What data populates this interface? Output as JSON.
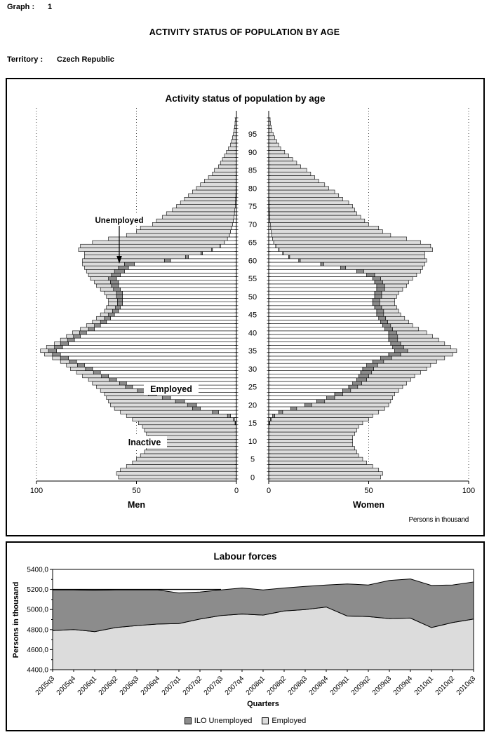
{
  "header": {
    "graph_label": "Graph :",
    "graph_number": "1",
    "page_title": "ACTIVITY STATUS OF POPULATION BY AGE",
    "territory_label": "Territory :",
    "territory_value": "Czech Republic"
  },
  "colors": {
    "employed_fill": "#ffffff",
    "unemployed_fill": "#8c8c8c",
    "inactive_fill": "#dcdcdc",
    "line": "#000000"
  },
  "chart_data": [
    {
      "id": "pyramid",
      "type": "bar",
      "subtype": "population-pyramid",
      "title": "Activity status of population by age",
      "left_label": "Men",
      "right_label": "Women",
      "units_label": "Persons in thousand",
      "xlim": [
        0,
        100
      ],
      "xticks_men": [
        "100",
        "50",
        "0"
      ],
      "xticks_women": [
        "0",
        "50",
        "100"
      ],
      "gridlines_at": [
        50,
        100
      ],
      "age_ticks": [
        0,
        5,
        10,
        15,
        20,
        25,
        30,
        35,
        40,
        45,
        50,
        55,
        60,
        65,
        70,
        75,
        80,
        85,
        90,
        95
      ],
      "annotations": {
        "unemployed": "Unemployed",
        "employed": "Employed",
        "inactive": "Inactive"
      },
      "men": {
        "employed": [
          0,
          0,
          0,
          0,
          0,
          0,
          0,
          0,
          0,
          0,
          0,
          0,
          0,
          0,
          0,
          0.5,
          1,
          3,
          9,
          18,
          20,
          26,
          33,
          40,
          46,
          52,
          55,
          60,
          64,
          68,
          72,
          76,
          80,
          84,
          88,
          90,
          87,
          84,
          81,
          78,
          75,
          71,
          68,
          65,
          63,
          61,
          59,
          58,
          57,
          57,
          57,
          57,
          58,
          59,
          59,
          60,
          58,
          56,
          54,
          51,
          33,
          24,
          17,
          12,
          8,
          6,
          4.5,
          3.5,
          3,
          2.5,
          2,
          1.6,
          1.3,
          1,
          0.8,
          0.6,
          0.5,
          0.4,
          0.3,
          0.2,
          0.2,
          0.1,
          0.1,
          0.1,
          0.1,
          0,
          0,
          0,
          0,
          0,
          0,
          0,
          0,
          0,
          0,
          0,
          0,
          0,
          0,
          0
        ],
        "unemployed": [
          0,
          0,
          0,
          0,
          0,
          0,
          0,
          0,
          0,
          0,
          0,
          0,
          0,
          0,
          0,
          0.2,
          0.5,
          1.5,
          3,
          4,
          4.5,
          4.5,
          4,
          4,
          3.5,
          3.5,
          3.5,
          3.5,
          3.5,
          3.5,
          3.5,
          3.5,
          3.5,
          4,
          4,
          4,
          4,
          4,
          3.5,
          3.5,
          3.5,
          3,
          3,
          3,
          3,
          3,
          3,
          2.5,
          2.5,
          2.5,
          3,
          3,
          3.5,
          3.5,
          4,
          4,
          4.5,
          5,
          5,
          5,
          3,
          1.5,
          0.8,
          0.4,
          0.2,
          0,
          0,
          0,
          0,
          0,
          0,
          0,
          0,
          0,
          0,
          0,
          0,
          0,
          0,
          0,
          0,
          0,
          0,
          0,
          0,
          0,
          0,
          0,
          0,
          0,
          0,
          0,
          0,
          0,
          0,
          0,
          0,
          0,
          0,
          0
        ],
        "inactive": [
          59,
          60,
          58,
          55,
          52,
          50,
          48,
          46,
          45,
          44,
          44,
          44,
          45,
          46,
          47,
          48.3,
          50.5,
          50.5,
          46,
          39,
          38.5,
          33.5,
          28,
          22,
          18.5,
          14.5,
          13.5,
          10.5,
          9.5,
          8.5,
          7.5,
          5.5,
          4.5,
          4,
          4,
          4,
          4,
          3,
          3.5,
          3.5,
          3.5,
          4,
          4,
          4,
          4,
          4,
          4,
          4.5,
          4.5,
          4.5,
          5,
          6,
          6.5,
          7.5,
          8,
          9,
          11.5,
          14,
          17,
          21,
          41,
          50.5,
          58.2,
          66.6,
          69.8,
          66,
          59.5,
          51.5,
          47,
          45.5,
          40,
          38.4,
          35.7,
          34,
          31.2,
          29.4,
          27.5,
          25.6,
          23.7,
          21.8,
          19.8,
          17.9,
          15.9,
          13.9,
          11.9,
          11,
          9,
          8,
          7,
          6,
          5,
          4,
          3,
          2.5,
          2,
          1.5,
          1.2,
          0.9,
          0.7,
          0.5
        ]
      },
      "women": {
        "employed": [
          0,
          0,
          0,
          0,
          0,
          0,
          0,
          0,
          0,
          0,
          0,
          0,
          0,
          0,
          0,
          0.3,
          0.8,
          2,
          5,
          11,
          18,
          24,
          29,
          33,
          37,
          40,
          42,
          44,
          45,
          46,
          47,
          49,
          52,
          56,
          60,
          63,
          62,
          61,
          60,
          60,
          60,
          58,
          57,
          56,
          55,
          54,
          54,
          53,
          52,
          52,
          53,
          53,
          54,
          54,
          53,
          52,
          49,
          44,
          36,
          26,
          15,
          10,
          7,
          5,
          3.5,
          2.5,
          2,
          1.5,
          1.2,
          1,
          0.8,
          0.6,
          0.5,
          0.4,
          0.3,
          0.2,
          0.2,
          0.1,
          0.1,
          0.1,
          0,
          0,
          0,
          0,
          0,
          0,
          0,
          0,
          0,
          0,
          0,
          0,
          0,
          0,
          0,
          0,
          0,
          0,
          0,
          0
        ],
        "unemployed": [
          0,
          0,
          0,
          0,
          0,
          0,
          0,
          0,
          0,
          0,
          0,
          0,
          0,
          0,
          0,
          0.2,
          0.4,
          1,
          2,
          3,
          3.5,
          4,
          4,
          4,
          4,
          4.5,
          4.5,
          5,
          5,
          5.5,
          5.5,
          5.5,
          5.5,
          5.5,
          6,
          6.5,
          5.5,
          5,
          4.5,
          4.5,
          4,
          4,
          4,
          3.5,
          3.5,
          3.5,
          3.5,
          3.5,
          3.5,
          3.5,
          3.5,
          3.5,
          4,
          4,
          4,
          4,
          4,
          3.5,
          2.5,
          1.5,
          0.8,
          0.5,
          0.3,
          0.2,
          0.1,
          0,
          0,
          0,
          0,
          0,
          0,
          0,
          0,
          0,
          0,
          0,
          0,
          0,
          0,
          0,
          0,
          0,
          0,
          0,
          0,
          0,
          0,
          0,
          0,
          0,
          0,
          0,
          0,
          0,
          0,
          0,
          0,
          0,
          0,
          0
        ],
        "inactive": [
          56,
          57,
          55,
          52,
          49,
          47,
          45,
          44,
          43,
          42,
          42,
          42,
          43,
          44,
          45,
          46.5,
          48.8,
          49,
          48,
          44,
          38.5,
          33,
          29,
          26,
          24,
          22.5,
          22.5,
          22,
          23,
          24.5,
          26.5,
          26.5,
          26.5,
          26.5,
          26,
          24.5,
          23.5,
          22,
          20.5,
          17.5,
          15,
          13,
          11,
          10.5,
          9.5,
          8.5,
          7.5,
          7.5,
          7.5,
          7.5,
          7.5,
          8.5,
          9,
          11,
          13,
          16,
          21,
          28.5,
          38.5,
          50.5,
          63.2,
          67.5,
          70.7,
          76.8,
          77.4,
          73.5,
          67,
          59.5,
          55.8,
          54,
          49.2,
          47.4,
          45.5,
          43.6,
          42.7,
          41.8,
          39.8,
          36.9,
          34.9,
          32.9,
          30,
          28,
          25,
          23,
          21,
          19,
          16,
          14,
          12,
          10,
          8,
          6,
          5,
          4,
          3,
          2.2,
          1.6,
          1.2,
          0.9,
          0.7
        ]
      }
    },
    {
      "id": "labour",
      "type": "area",
      "title": "Labour forces",
      "xlabel": "Quarters",
      "ylabel": "Persons in thousand",
      "ylim": [
        4400,
        5400
      ],
      "ytick_labels": [
        "4400,0",
        "4600,0",
        "4800,0",
        "5000,0",
        "5200,0",
        "5400,0"
      ],
      "categories": [
        "2005q3",
        "2005q4",
        "2006q1",
        "2006q2",
        "2006q3",
        "2006q4",
        "2007q1",
        "2007q2",
        "2007q3",
        "2007q4",
        "2008q1",
        "2008q2",
        "2008q3",
        "2008q4",
        "2009q1",
        "2009q2",
        "2009q3",
        "2009q4",
        "2010q1",
        "2010q2",
        "2010q3"
      ],
      "series": [
        {
          "name": "Employed",
          "values": [
            4790,
            4800,
            4780,
            4820,
            4840,
            4855,
            4860,
            4905,
            4940,
            4955,
            4945,
            4985,
            5000,
            5025,
            4935,
            4930,
            4910,
            4915,
            4820,
            4870,
            4905
          ]
        },
        {
          "name": "ILO Unemployed",
          "values": [
            405,
            395,
            410,
            375,
            355,
            340,
            305,
            270,
            255,
            260,
            250,
            230,
            230,
            220,
            320,
            315,
            380,
            390,
            420,
            375,
            370
          ]
        }
      ],
      "legend": [
        "ILO Unemployed",
        "Employed"
      ],
      "annotation_line": {
        "value": 5200,
        "from": "2005q3",
        "to": "2007q3"
      }
    }
  ]
}
